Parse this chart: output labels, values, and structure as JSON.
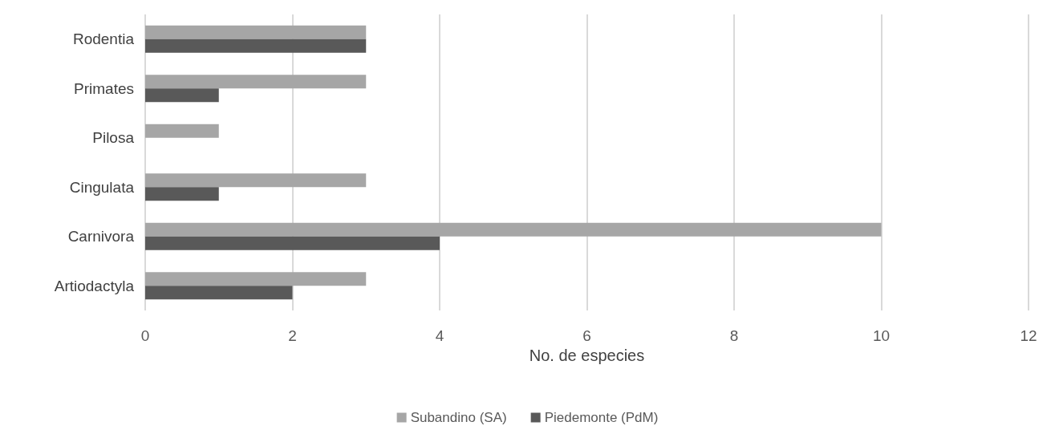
{
  "chart_data": {
    "type": "bar",
    "orientation": "horizontal",
    "xlabel": "No. de especies",
    "categories": [
      "Rodentia",
      "Primates",
      "Pilosa",
      "Cingulata",
      "Carnivora",
      "Artiodactyla"
    ],
    "series": [
      {
        "name": "Subandino (SA)",
        "color": "#a6a6a6",
        "values": [
          3,
          3,
          1,
          3,
          10,
          3
        ]
      },
      {
        "name": "Piedemonte (PdM)",
        "color": "#595959",
        "values": [
          3,
          1,
          0,
          1,
          4,
          2
        ]
      }
    ],
    "xlim": [
      0,
      12
    ],
    "xticks": [
      0,
      2,
      4,
      6,
      8,
      10,
      12
    ],
    "grid": "x",
    "legend": "bottom"
  }
}
